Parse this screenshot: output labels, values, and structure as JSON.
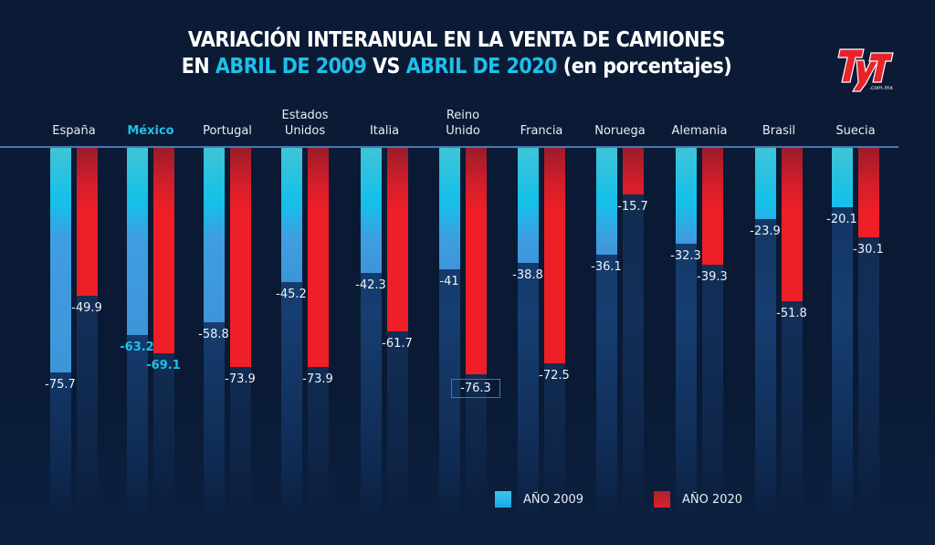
{
  "chart_data": {
    "type": "bar",
    "title_line1": "VARIACIÓN INTERANUAL EN LA VENTA DE CAMIONES",
    "title_line2_parts": [
      "EN ",
      "ABRIL DE 2009",
      " VS ",
      "ABRIL DE 2020",
      " (en porcentajes)"
    ],
    "categories": [
      {
        "name": "España",
        "lines": [
          "España"
        ]
      },
      {
        "name": "México",
        "lines": [
          "México"
        ],
        "highlight": true
      },
      {
        "name": "Portugal",
        "lines": [
          "Portugal"
        ]
      },
      {
        "name": "Estados Unidos",
        "lines": [
          "Estados",
          "Unidos"
        ]
      },
      {
        "name": "Italia",
        "lines": [
          "Italia"
        ]
      },
      {
        "name": "Reino Unido",
        "lines": [
          "Reino",
          "Unido"
        ]
      },
      {
        "name": "Francia",
        "lines": [
          "Francia"
        ]
      },
      {
        "name": "Noruega",
        "lines": [
          "Noruega"
        ]
      },
      {
        "name": "Alemania",
        "lines": [
          "Alemania"
        ]
      },
      {
        "name": "Brasil",
        "lines": [
          "Brasil"
        ]
      },
      {
        "name": "Suecia",
        "lines": [
          "Suecia"
        ]
      }
    ],
    "series": [
      {
        "name": "AÑO 2009",
        "color": "#1ec0ea",
        "values": [
          -75.7,
          -63.2,
          -58.8,
          -45.2,
          -42.3,
          -41,
          -38.8,
          -36.1,
          -32.3,
          -23.9,
          -20.1
        ],
        "labels": [
          "-75.7",
          "-63.2",
          "-58.8",
          "-45.2",
          "-42.3",
          "-41",
          "-38.8",
          "-36.1",
          "-32.3",
          "-23.9",
          "-20.1"
        ]
      },
      {
        "name": "AÑO 2020",
        "color": "#ee1f26",
        "values": [
          -49.9,
          -69.1,
          -73.9,
          -73.9,
          -61.7,
          -76.3,
          -72.5,
          -15.7,
          -39.3,
          -51.8,
          -30.1
        ],
        "labels": [
          "-49.9",
          "-69.1",
          "-73.9",
          "-73.9",
          "-61.7",
          "-76.3",
          "-72.5",
          "-15.7",
          "-39.3",
          "-51.8",
          "-30.1"
        ]
      }
    ],
    "highlight_category": "México",
    "boxed_value": {
      "series": "AÑO 2020",
      "category": "Reino Unido"
    },
    "ylim": [
      -80,
      0
    ],
    "xlabel": "",
    "ylabel": "",
    "grid": false,
    "legend_position": "bottom"
  },
  "logo": {
    "text": "TyT",
    "subtext": ".com.mx"
  },
  "legend": [
    {
      "label": "AÑO 2009"
    },
    {
      "label": "AÑO 2020"
    }
  ]
}
